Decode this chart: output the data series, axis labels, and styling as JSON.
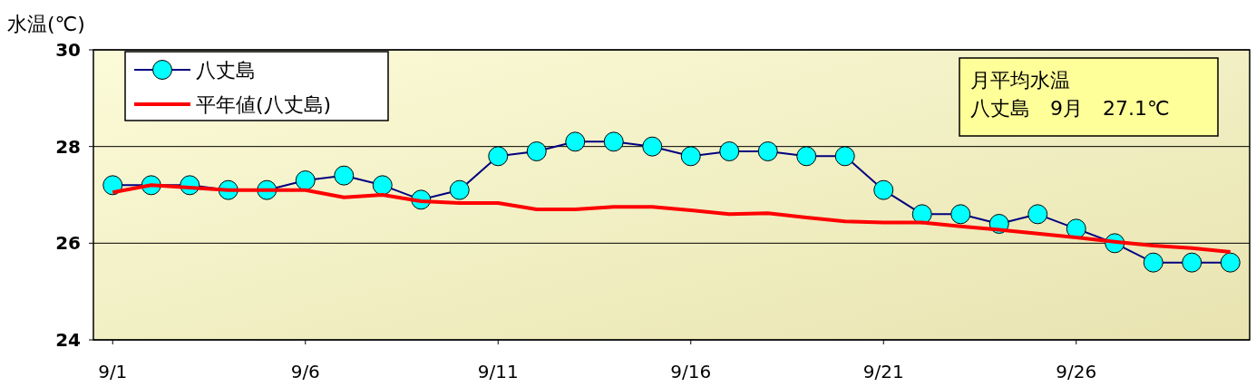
{
  "chart_data": {
    "type": "line",
    "ylabel": "水温(℃)",
    "categories": [
      "9/1",
      null,
      null,
      null,
      null,
      "9/6",
      null,
      null,
      null,
      null,
      "9/11",
      null,
      null,
      null,
      null,
      "9/16",
      null,
      null,
      null,
      null,
      "9/21",
      null,
      null,
      null,
      null,
      "9/26",
      null,
      null,
      null,
      null
    ],
    "series": [
      {
        "name": "八丈島",
        "color": "#000080",
        "marker": "circle",
        "values": [
          27.2,
          27.2,
          27.2,
          27.1,
          27.1,
          27.3,
          27.4,
          27.2,
          26.9,
          27.1,
          27.8,
          27.9,
          28.1,
          28.1,
          28.0,
          27.8,
          27.9,
          27.9,
          27.8,
          27.8,
          27.1,
          26.6,
          26.6,
          26.4,
          26.6,
          26.3,
          26.0,
          25.6,
          25.6,
          25.6
        ]
      },
      {
        "name": "平年値(八丈島)",
        "color": "#ff0000",
        "marker": "none",
        "values": [
          27.05,
          27.2,
          27.15,
          27.1,
          27.1,
          27.1,
          26.95,
          27.0,
          26.87,
          26.83,
          26.83,
          26.7,
          26.7,
          26.75,
          26.75,
          26.68,
          26.6,
          26.62,
          26.53,
          26.45,
          26.43,
          26.43,
          26.35,
          26.28,
          26.2,
          26.12,
          26.03,
          25.95,
          25.9,
          25.82
        ]
      }
    ],
    "ylim": [
      24,
      30
    ],
    "yticks": [
      24,
      26,
      28,
      30
    ],
    "grid": "y",
    "legend": "top left",
    "annotations": [
      "月平均水温",
      "八丈島　9月　27.1℃"
    ]
  }
}
